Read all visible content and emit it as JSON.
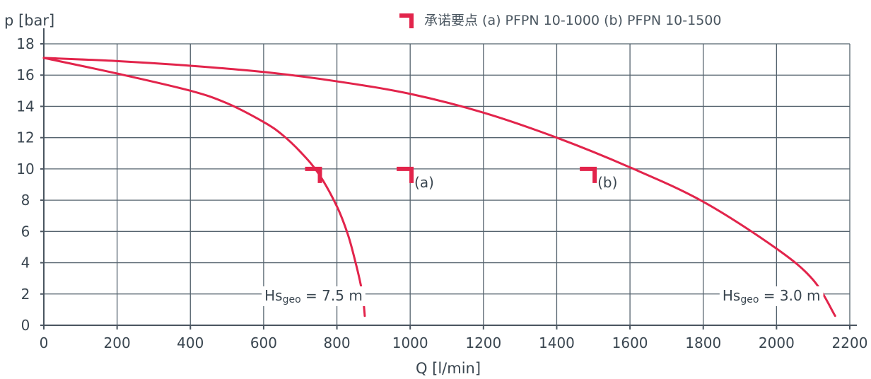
{
  "chart_data": {
    "type": "line",
    "title": "",
    "xlabel": "Q [l/min]",
    "ylabel": "p [bar]",
    "xlim": [
      0,
      2200
    ],
    "ylim": [
      0,
      18
    ],
    "x_ticks": [
      0,
      200,
      400,
      600,
      800,
      1000,
      1200,
      1400,
      1600,
      1800,
      2000,
      2200
    ],
    "y_ticks": [
      0,
      2,
      4,
      6,
      8,
      10,
      12,
      14,
      16,
      18
    ],
    "grid": true,
    "legend": {
      "position": "top-right",
      "text": "承诺要点 (a) PFPN 10-1000 (b) PFPN 10-1500"
    },
    "series": [
      {
        "label": "Hsgeo = 7.5 m",
        "color": "#e2244b",
        "x": [
          0,
          200,
          400,
          500,
          600,
          650,
          700,
          750,
          800,
          830,
          850,
          865,
          872,
          875,
          876
        ],
        "y": [
          17.1,
          16.1,
          15.0,
          14.2,
          13.0,
          12.2,
          11.1,
          9.7,
          7.6,
          5.8,
          4.1,
          2.6,
          1.6,
          0.9,
          0.6
        ]
      },
      {
        "label": "Hsgeo = 3.0 m",
        "color": "#e2244b",
        "x": [
          0,
          200,
          400,
          600,
          800,
          1000,
          1200,
          1400,
          1600,
          1800,
          2000,
          2100,
          2160
        ],
        "y": [
          17.1,
          16.9,
          16.6,
          16.2,
          15.6,
          14.8,
          13.6,
          12.0,
          10.1,
          7.9,
          4.9,
          2.9,
          0.6
        ]
      }
    ],
    "annotations": [
      {
        "base": "Hs",
        "sub": "geo",
        "tail": " = 7.5 m",
        "at_x": 870,
        "at_y": 1.9,
        "anchor": "end"
      },
      {
        "base": "Hs",
        "sub": "geo",
        "tail": " = 3.0 m",
        "at_x": 2120,
        "at_y": 1.9,
        "anchor": "end"
      }
    ],
    "markers": [
      {
        "x": 715,
        "y": 10,
        "label": ""
      },
      {
        "x": 965,
        "y": 10,
        "label": "(a)"
      },
      {
        "x": 1465,
        "y": 10,
        "label": "(b)"
      }
    ]
  }
}
